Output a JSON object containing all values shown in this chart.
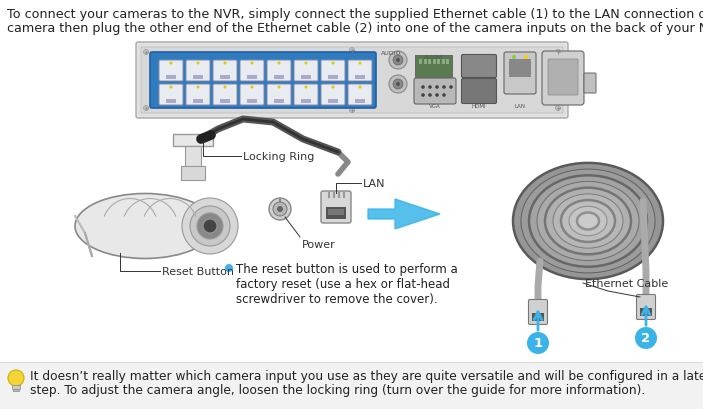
{
  "background_color": "#ffffff",
  "top_text_line1": "To connect your cameras to the NVR, simply connect the supplied Ethernet cable (1) to the LAN connection on the",
  "top_text_line2": "camera then plug the other end of the Ethernet cable (2) into one of the camera inputs on the back of your NVR.",
  "bottom_text_line1": "It doesn’t really matter which camera input you use as they are quite versatile and will be configured in a later",
  "bottom_text_line2": "step. To adjust the camera angle, loosen the locking ring (turn over the guide for more information).",
  "bullet_text": "The reset button is used to perform a\nfactory reset (use a hex or flat-head\nscrewdriver to remove the cover).",
  "label_locking_ring": "Locking Ring",
  "label_lan": "LAN",
  "label_power": "Power",
  "label_reset": "Reset Button",
  "label_ethernet": "Ethernet Cable",
  "text_color": "#222222",
  "label_color": "#333333",
  "arrow_color": "#3ab4e8",
  "bullet_color": "#3ab4e8",
  "nvr_outer_color": "#e8e8e8",
  "nvr_inner_bg": "#d0d0d0",
  "port_blue": "#4a9fd4",
  "port_bg": "#3070a0",
  "font_size_body": 9.2,
  "font_size_label": 8.0,
  "font_size_number": 9.5
}
